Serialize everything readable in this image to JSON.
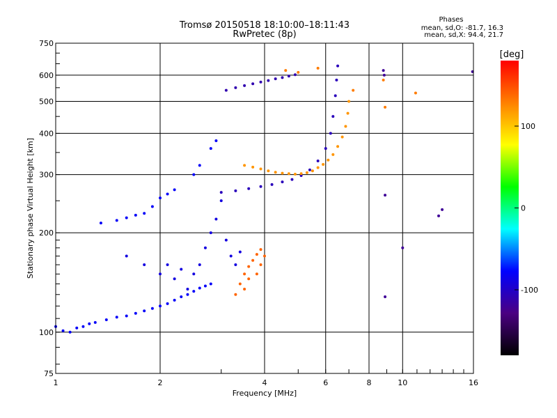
{
  "title_line1": "Tromsø 20150518 18:10:00–18:11:43",
  "title_line2": "RwPretec (8p)",
  "phase_info": {
    "heading": "Phases",
    "o_line": "mean, sd,O: -81.7, 16.3",
    "x_line": "mean, sd,X:  94.4, 21.7"
  },
  "chart_data": {
    "type": "scatter",
    "xlabel": "Frequency [MHz]",
    "ylabel": "Stationary phase Virtual Height [km]",
    "x_scale": "log",
    "y_scale": "log",
    "xlim": [
      1,
      16
    ],
    "ylim": [
      75,
      750
    ],
    "x_ticks": [
      1,
      2,
      4,
      6,
      8,
      10,
      16
    ],
    "y_ticks": [
      75,
      100,
      200,
      300,
      400,
      500,
      600,
      750
    ],
    "grid": true,
    "colorbar": {
      "label": "[deg]",
      "range": [
        -180,
        180
      ],
      "ticks": [
        100,
        0,
        -100
      ],
      "colors": [
        "#000000",
        "#4b0082",
        "#0000ff",
        "#00ffff",
        "#00ff00",
        "#ffff00",
        "#ff8000",
        "#ff0000"
      ]
    },
    "series": [
      {
        "phase_deg": -80,
        "points": [
          [
            1.0,
            104
          ],
          [
            1.05,
            101
          ],
          [
            1.1,
            100
          ],
          [
            1.15,
            103
          ],
          [
            1.2,
            104
          ],
          [
            1.25,
            106
          ],
          [
            1.3,
            107
          ],
          [
            1.4,
            109
          ],
          [
            1.5,
            111
          ],
          [
            1.6,
            112
          ],
          [
            1.7,
            114
          ],
          [
            1.8,
            116
          ],
          [
            1.9,
            118
          ],
          [
            2.0,
            120
          ],
          [
            2.1,
            122
          ],
          [
            2.2,
            125
          ],
          [
            2.3,
            128
          ],
          [
            2.4,
            130
          ],
          [
            2.5,
            133
          ],
          [
            2.6,
            136
          ],
          [
            2.7,
            138
          ],
          [
            2.8,
            140
          ]
        ]
      },
      {
        "phase_deg": -80,
        "points": [
          [
            1.35,
            214
          ],
          [
            1.5,
            218
          ],
          [
            1.6,
            222
          ],
          [
            1.7,
            226
          ],
          [
            1.8,
            229
          ],
          [
            1.9,
            240
          ],
          [
            2.0,
            255
          ],
          [
            2.1,
            262
          ],
          [
            2.2,
            270
          ],
          [
            2.5,
            300
          ],
          [
            2.6,
            320
          ],
          [
            2.8,
            360
          ],
          [
            2.9,
            380
          ]
        ]
      },
      {
        "phase_deg": -90,
        "points": [
          [
            1.6,
            170
          ],
          [
            1.8,
            160
          ],
          [
            2.0,
            150
          ],
          [
            2.1,
            160
          ],
          [
            2.2,
            145
          ],
          [
            2.3,
            155
          ],
          [
            2.4,
            135
          ],
          [
            2.5,
            150
          ],
          [
            2.6,
            160
          ],
          [
            2.7,
            180
          ],
          [
            2.8,
            200
          ],
          [
            2.9,
            220
          ],
          [
            3.0,
            250
          ],
          [
            3.1,
            190
          ],
          [
            3.2,
            170
          ],
          [
            3.3,
            160
          ],
          [
            3.4,
            175
          ]
        ]
      },
      {
        "phase_deg": -105,
        "points": [
          [
            3.0,
            265
          ],
          [
            3.3,
            268
          ],
          [
            3.6,
            272
          ],
          [
            3.9,
            276
          ],
          [
            4.2,
            280
          ],
          [
            4.5,
            285
          ],
          [
            4.8,
            290
          ],
          [
            5.1,
            298
          ],
          [
            5.4,
            310
          ],
          [
            5.7,
            330
          ],
          [
            6.0,
            360
          ],
          [
            6.2,
            400
          ],
          [
            6.3,
            450
          ],
          [
            6.4,
            520
          ],
          [
            6.45,
            580
          ],
          [
            6.5,
            640
          ]
        ]
      },
      {
        "phase_deg": -110,
        "points": [
          [
            3.1,
            540
          ],
          [
            3.3,
            550
          ],
          [
            3.5,
            558
          ],
          [
            3.7,
            565
          ],
          [
            3.9,
            572
          ],
          [
            4.1,
            578
          ],
          [
            4.3,
            585
          ],
          [
            4.5,
            590
          ],
          [
            4.7,
            596
          ],
          [
            4.9,
            602
          ]
        ]
      },
      {
        "phase_deg": 120,
        "points": [
          [
            3.5,
            320
          ],
          [
            3.7,
            316
          ],
          [
            3.9,
            312
          ],
          [
            4.1,
            308
          ],
          [
            4.3,
            305
          ],
          [
            4.5,
            303
          ],
          [
            4.7,
            302
          ],
          [
            4.9,
            301
          ],
          [
            5.1,
            302
          ],
          [
            5.3,
            304
          ],
          [
            5.5,
            308
          ],
          [
            5.7,
            315
          ],
          [
            5.9,
            322
          ],
          [
            6.1,
            332
          ],
          [
            6.3,
            345
          ],
          [
            6.5,
            365
          ],
          [
            6.7,
            390
          ],
          [
            6.85,
            420
          ],
          [
            6.95,
            460
          ],
          [
            7.0,
            500
          ]
        ]
      },
      {
        "phase_deg": 140,
        "points": [
          [
            3.3,
            130
          ],
          [
            3.4,
            140
          ],
          [
            3.5,
            150
          ],
          [
            3.6,
            158
          ],
          [
            3.7,
            165
          ],
          [
            3.8,
            172
          ],
          [
            3.9,
            178
          ],
          [
            4.0,
            170
          ],
          [
            3.9,
            160
          ],
          [
            3.8,
            150
          ],
          [
            3.6,
            145
          ],
          [
            3.5,
            135
          ]
        ]
      },
      {
        "phase_deg": 130,
        "points": [
          [
            4.6,
            620
          ],
          [
            5.0,
            612
          ],
          [
            5.7,
            630
          ],
          [
            7.2,
            540
          ],
          [
            8.8,
            580
          ],
          [
            8.9,
            480
          ],
          [
            10.9,
            530
          ]
        ]
      },
      {
        "phase_deg": -120,
        "points": [
          [
            8.8,
            620
          ],
          [
            8.85,
            600
          ],
          [
            8.9,
            260
          ],
          [
            8.9,
            128
          ],
          [
            10.0,
            180
          ],
          [
            12.7,
            225
          ],
          [
            13.0,
            235
          ],
          [
            15.9,
            615
          ]
        ]
      }
    ]
  }
}
